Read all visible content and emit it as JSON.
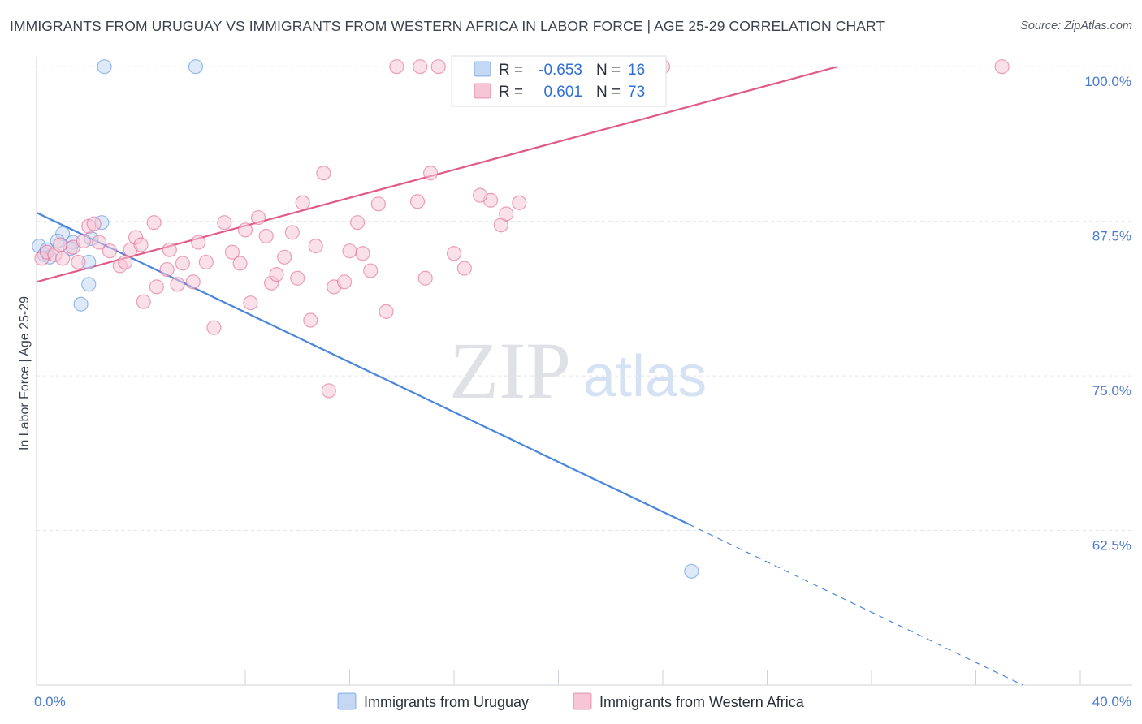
{
  "title": "IMMIGRANTS FROM URUGUAY VS IMMIGRANTS FROM WESTERN AFRICA IN LABOR FORCE | AGE 25-29 CORRELATION CHART",
  "source": "Source: ZipAtlas.com",
  "watermark": {
    "zip": "ZIP",
    "atlas": "atlas"
  },
  "chart_data": {
    "type": "scatter",
    "ylabel": "In Labor Force | Age 25-29",
    "xlim": [
      0,
      40
    ],
    "ylim": [
      50,
      100.8
    ],
    "y_ticks": [
      {
        "value": 100.0,
        "label": "100.0%"
      },
      {
        "value": 87.5,
        "label": "87.5%"
      },
      {
        "value": 75.0,
        "label": "75.0%"
      },
      {
        "value": 62.5,
        "label": "62.5%"
      }
    ],
    "x_tick_labels": [
      {
        "value": 0,
        "label": "0.0%"
      },
      {
        "value": 40,
        "label": "40.0%"
      }
    ],
    "x_minor_ticks": [
      0,
      4,
      8,
      12,
      16,
      20,
      24,
      28,
      32,
      36,
      40
    ],
    "grid": true,
    "legend_position": "top-center",
    "series": [
      {
        "name": "Immigrants from Uruguay",
        "color": "#4a86dc",
        "fill": "#c5d8f3",
        "r_label": "R = ",
        "r": "-0.653",
        "n_label": "N = ",
        "n": "16",
        "trend": {
          "x0": 0,
          "y0": 88.2,
          "x1": 25.0,
          "y1": 63.0,
          "dashed_to_x": 37.8,
          "dashed_to_y": 50.0
        },
        "points": [
          [
            0.1,
            85.5
          ],
          [
            0.3,
            84.8
          ],
          [
            0.4,
            85.2
          ],
          [
            0.5,
            84.6
          ],
          [
            1.0,
            86.5
          ],
          [
            1.4,
            85.8
          ],
          [
            1.3,
            85.3
          ],
          [
            2.1,
            86.1
          ],
          [
            2.5,
            87.4
          ],
          [
            2.0,
            84.2
          ],
          [
            2.0,
            82.4
          ],
          [
            1.7,
            80.8
          ],
          [
            2.6,
            100.0
          ],
          [
            6.1,
            100.0
          ],
          [
            25.1,
            59.2
          ],
          [
            0.8,
            85.9
          ]
        ]
      },
      {
        "name": "Immigrants from Western Africa",
        "color": "#e05a8a",
        "fill": "#f6c6d6",
        "r_label": "R = ",
        "r": "0.601",
        "n_label": "N = ",
        "n": "73",
        "trend": {
          "x0": 0,
          "y0": 82.6,
          "x1": 30.7,
          "y1": 100.0
        },
        "points": [
          [
            0.2,
            84.5
          ],
          [
            0.4,
            85.0
          ],
          [
            0.7,
            84.8
          ],
          [
            0.9,
            85.6
          ],
          [
            1.0,
            84.5
          ],
          [
            1.4,
            85.4
          ],
          [
            1.6,
            84.2
          ],
          [
            1.8,
            85.9
          ],
          [
            2.0,
            87.1
          ],
          [
            2.2,
            87.3
          ],
          [
            2.4,
            85.8
          ],
          [
            2.8,
            85.1
          ],
          [
            3.2,
            83.9
          ],
          [
            3.4,
            84.2
          ],
          [
            3.6,
            85.2
          ],
          [
            3.8,
            86.2
          ],
          [
            4.0,
            85.6
          ],
          [
            4.1,
            81.0
          ],
          [
            4.5,
            87.4
          ],
          [
            4.6,
            82.2
          ],
          [
            5.0,
            83.6
          ],
          [
            5.1,
            85.2
          ],
          [
            5.4,
            82.4
          ],
          [
            5.6,
            84.1
          ],
          [
            6.0,
            82.6
          ],
          [
            6.2,
            85.8
          ],
          [
            6.5,
            84.2
          ],
          [
            6.8,
            78.9
          ],
          [
            7.2,
            87.4
          ],
          [
            7.5,
            85.0
          ],
          [
            7.8,
            84.1
          ],
          [
            8.0,
            86.8
          ],
          [
            8.2,
            80.9
          ],
          [
            8.5,
            87.8
          ],
          [
            8.8,
            86.3
          ],
          [
            9.0,
            82.5
          ],
          [
            9.2,
            83.2
          ],
          [
            9.5,
            84.6
          ],
          [
            9.8,
            86.6
          ],
          [
            10.0,
            82.9
          ],
          [
            10.2,
            89.0
          ],
          [
            10.5,
            79.5
          ],
          [
            10.7,
            85.5
          ],
          [
            11.0,
            91.4
          ],
          [
            11.2,
            73.8
          ],
          [
            11.4,
            82.2
          ],
          [
            11.8,
            82.6
          ],
          [
            12.0,
            85.1
          ],
          [
            12.3,
            87.4
          ],
          [
            12.5,
            84.9
          ],
          [
            12.8,
            83.5
          ],
          [
            13.1,
            88.9
          ],
          [
            13.4,
            80.2
          ],
          [
            13.8,
            100.0
          ],
          [
            14.6,
            89.1
          ],
          [
            14.9,
            82.9
          ],
          [
            15.1,
            91.4
          ],
          [
            15.4,
            100.0
          ],
          [
            16.0,
            84.9
          ],
          [
            16.4,
            83.7
          ],
          [
            17.1,
            100.0
          ],
          [
            17.4,
            89.2
          ],
          [
            17.8,
            87.2
          ],
          [
            18.0,
            88.1
          ],
          [
            17.0,
            89.6
          ],
          [
            18.5,
            89.0
          ],
          [
            21.0,
            100.0
          ],
          [
            22.0,
            100.0
          ],
          [
            23.0,
            100.0
          ],
          [
            24.0,
            100.0
          ],
          [
            37.0,
            100.0
          ],
          [
            16.8,
            100.0
          ],
          [
            14.7,
            100.0
          ]
        ]
      }
    ]
  }
}
